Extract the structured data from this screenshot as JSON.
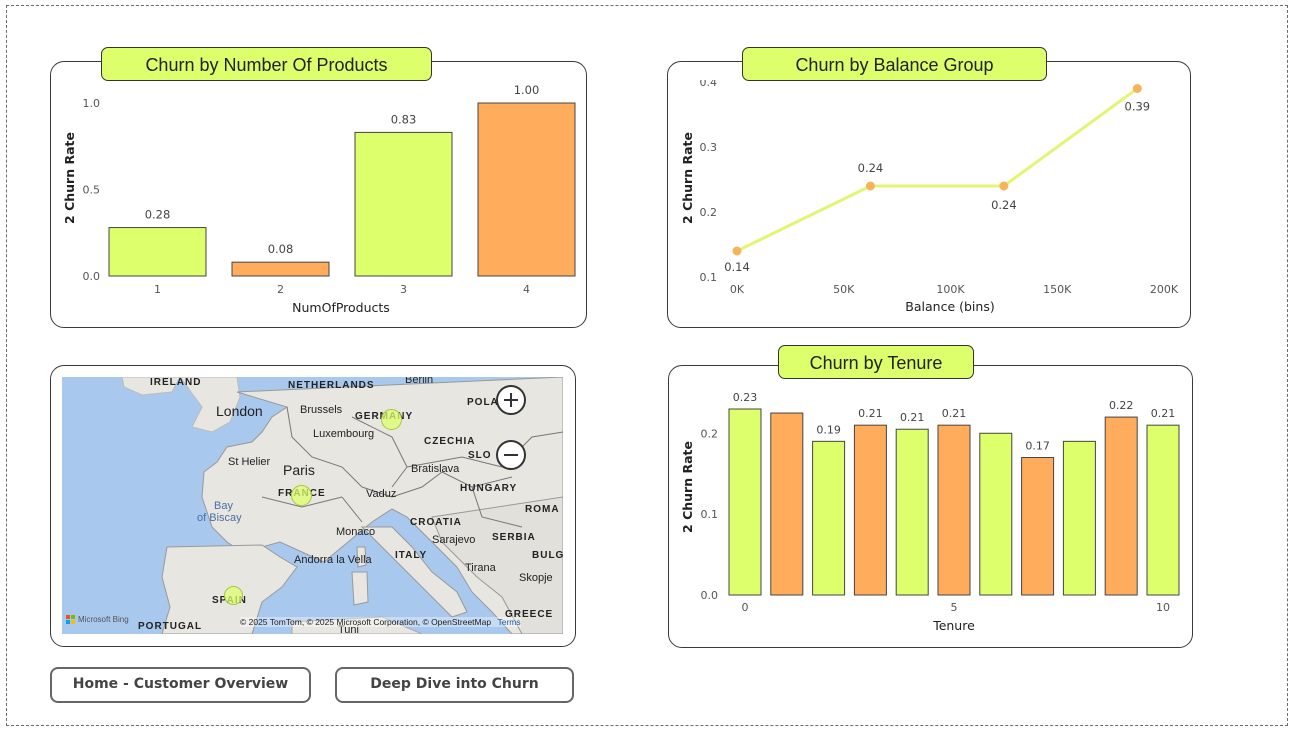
{
  "buttons": {
    "home": "Home - Customer Overview",
    "deep_dive": "Deep Dive into Churn"
  },
  "colors": {
    "green": "#ddff6c",
    "orange": "#ffad5c",
    "line": "#e4f574",
    "point": "#f8b25a"
  },
  "map": {
    "labels": [
      {
        "text": "IRELAND",
        "name": "map-label-ireland"
      },
      {
        "text": "NETHERLANDS",
        "name": "map-label-netherlands"
      },
      {
        "text": "Berlin",
        "name": "map-label-berlin"
      },
      {
        "text": "London",
        "name": "map-label-london"
      },
      {
        "text": "Brussels",
        "name": "map-label-brussels"
      },
      {
        "text": "GERMANY",
        "name": "map-label-germany"
      },
      {
        "text": "POLA",
        "name": "map-label-poland"
      },
      {
        "text": "Luxembourg",
        "name": "map-label-luxembourg"
      },
      {
        "text": "CZECHIA",
        "name": "map-label-czechia"
      },
      {
        "text": "St Helier",
        "name": "map-label-st-helier"
      },
      {
        "text": "Paris",
        "name": "map-label-paris"
      },
      {
        "text": "Bratislava",
        "name": "map-label-bratislava"
      },
      {
        "text": "SLO",
        "name": "map-label-slovakia"
      },
      {
        "text": "FRANCE",
        "name": "map-label-france"
      },
      {
        "text": "Vaduz",
        "name": "map-label-vaduz"
      },
      {
        "text": "HUNGARY",
        "name": "map-label-hungary"
      },
      {
        "text": "Bay",
        "name": "map-label-bay"
      },
      {
        "text": "of Biscay",
        "name": "map-label-biscay"
      },
      {
        "text": "CROATIA",
        "name": "map-label-croatia"
      },
      {
        "text": "ROMA",
        "name": "map-label-romania"
      },
      {
        "text": "Monaco",
        "name": "map-label-monaco"
      },
      {
        "text": "Sarajevo",
        "name": "map-label-sarajevo"
      },
      {
        "text": "SERBIA",
        "name": "map-label-serbia"
      },
      {
        "text": "Andorra la Vella",
        "name": "map-label-andorra"
      },
      {
        "text": "ITALY",
        "name": "map-label-italy"
      },
      {
        "text": "BULG",
        "name": "map-label-bulgaria"
      },
      {
        "text": "Tirana",
        "name": "map-label-tirana"
      },
      {
        "text": "Skopje",
        "name": "map-label-skopje"
      },
      {
        "text": "SPAIN",
        "name": "map-label-spain"
      },
      {
        "text": "GREECE",
        "name": "map-label-greece"
      },
      {
        "text": "PORTUGAL",
        "name": "map-label-portugal"
      },
      {
        "text": "Tuni",
        "name": "map-label-tunis"
      }
    ],
    "logo": "Microsoft Bing",
    "attribution": "© 2025 TomTom, © 2025 Microsoft Corporation, © OpenStreetMap",
    "terms": "Terms"
  },
  "chart_data": [
    {
      "type": "bar",
      "title": "Churn by Number Of Products",
      "xlabel": "NumOfProducts",
      "ylabel": "2 Churn Rate",
      "categories": [
        "1",
        "2",
        "3",
        "4"
      ],
      "values": [
        0.28,
        0.08,
        0.83,
        1.0
      ],
      "data_labels": [
        "0.28",
        "0.08",
        "0.83",
        "1.00"
      ],
      "bar_colors": [
        "green",
        "orange",
        "green",
        "orange"
      ],
      "ylim": [
        0,
        1.0
      ],
      "yticks": [
        "0.0",
        "0.5",
        "1.0"
      ],
      "legend": "none"
    },
    {
      "type": "line",
      "title": "Churn by Balance Group",
      "xlabel": "Balance (bins)",
      "ylabel": "2 Churn Rate",
      "x": [
        0,
        62500,
        125000,
        187500
      ],
      "y": [
        0.14,
        0.24,
        0.24,
        0.39
      ],
      "data_labels": [
        "0.14",
        "0.24",
        "0.24",
        "0.39"
      ],
      "xlim": [
        0,
        200000
      ],
      "xticks": [
        "0K",
        "50K",
        "100K",
        "150K",
        "200K"
      ],
      "ylim": [
        0.1,
        0.4
      ],
      "yticks": [
        "0.1",
        "0.2",
        "0.3",
        "0.4"
      ],
      "legend": "none"
    },
    {
      "type": "bar",
      "title": "Churn by Tenure",
      "xlabel": "Tenure",
      "ylabel": "2 Churn Rate",
      "categories": [
        "0",
        "1",
        "2",
        "3",
        "4",
        "5",
        "6",
        "7",
        "8",
        "9",
        "10"
      ],
      "values": [
        0.23,
        0.225,
        0.19,
        0.21,
        0.205,
        0.21,
        0.2,
        0.17,
        0.19,
        0.22,
        0.21
      ],
      "data_labels": [
        "0.23",
        "",
        "0.19",
        "0.21",
        "0.21",
        "0.21",
        "",
        "0.17",
        "",
        "0.22",
        "0.21"
      ],
      "xticks": [
        "0",
        "5",
        "10"
      ],
      "bar_colors": [
        "green",
        "orange",
        "green",
        "orange",
        "green",
        "orange",
        "green",
        "orange",
        "green",
        "orange",
        "green"
      ],
      "ylim": [
        0,
        0.23
      ],
      "yticks": [
        "0.0",
        "0.1",
        "0.2"
      ],
      "legend": "none"
    }
  ]
}
